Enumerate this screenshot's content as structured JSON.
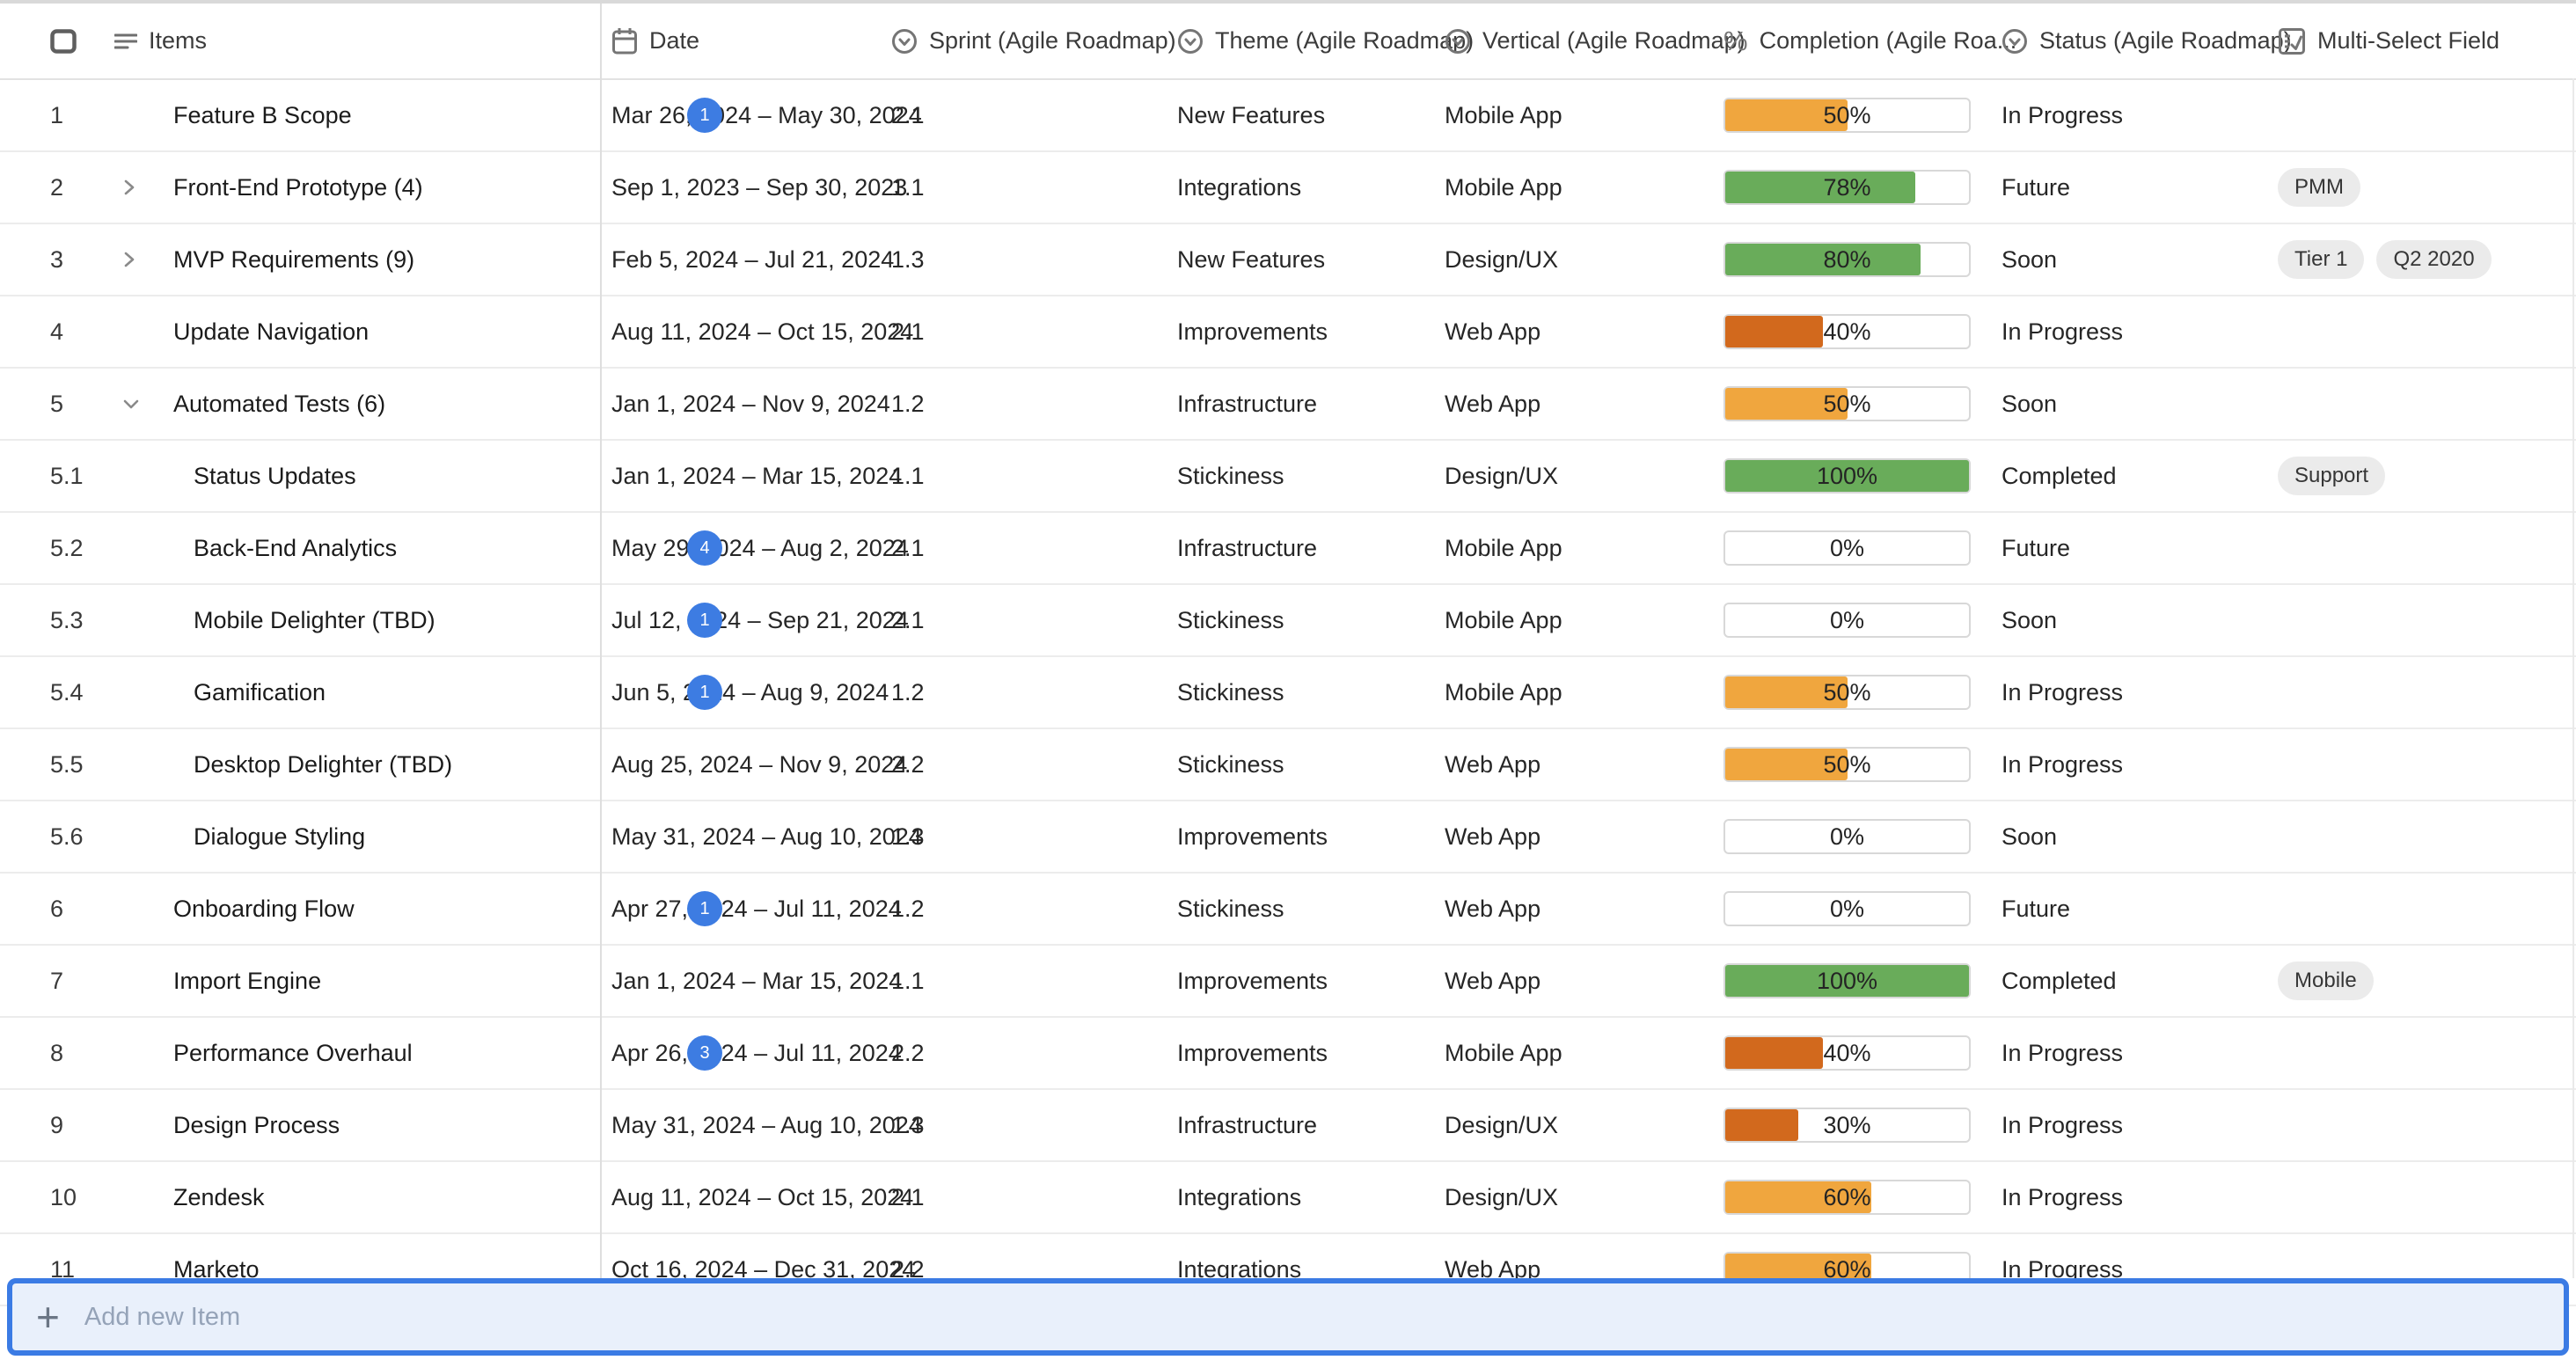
{
  "columns": [
    {
      "id": "items",
      "label": "Items",
      "icon": "menu-icon"
    },
    {
      "id": "date",
      "label": "Date",
      "icon": "calendar-icon"
    },
    {
      "id": "sprint",
      "label": "Sprint (Agile Roadmap)",
      "icon": "single-select-icon"
    },
    {
      "id": "theme",
      "label": "Theme (Agile Roadmap)",
      "icon": "single-select-icon"
    },
    {
      "id": "vertical",
      "label": "Vertical (Agile Roadmap)",
      "icon": "single-select-icon"
    },
    {
      "id": "completion",
      "label": "Completion (Agile Roa...",
      "icon": "percent-icon"
    },
    {
      "id": "status",
      "label": "Status (Agile Roadmap)",
      "icon": "single-select-icon"
    },
    {
      "id": "multi",
      "label": "Multi-Select Field",
      "icon": "multi-select-icon"
    }
  ],
  "rows": [
    {
      "num": "1",
      "name": "Feature B Scope",
      "badge": "1",
      "expand": null,
      "indent": false,
      "date": "Mar 26, 2024 – May 30, 2024",
      "sprint": "2.1",
      "theme": "New Features",
      "vertical": "Mobile App",
      "completion_pct": 50,
      "completion_label": "50%",
      "completion_color": "orange",
      "status": "In Progress",
      "tags": []
    },
    {
      "num": "2",
      "name": "Front-End Prototype (4)",
      "badge": null,
      "expand": "collapsed",
      "indent": false,
      "date": "Sep 1, 2023 – Sep 30, 2023",
      "sprint": "1.1",
      "theme": "Integrations",
      "vertical": "Mobile App",
      "completion_pct": 78,
      "completion_label": "78%",
      "completion_color": "green",
      "status": "Future",
      "tags": [
        "PMM"
      ]
    },
    {
      "num": "3",
      "name": "MVP Requirements (9)",
      "badge": null,
      "expand": "collapsed",
      "indent": false,
      "date": "Feb 5, 2024 – Jul 21, 2024",
      "sprint": "1.3",
      "theme": "New Features",
      "vertical": "Design/UX",
      "completion_pct": 80,
      "completion_label": "80%",
      "completion_color": "green",
      "status": "Soon",
      "tags": [
        "Tier 1",
        "Q2 2020"
      ]
    },
    {
      "num": "4",
      "name": "Update Navigation",
      "badge": null,
      "expand": null,
      "indent": false,
      "date": "Aug 11, 2024 – Oct 15, 2024",
      "sprint": "2.1",
      "theme": "Improvements",
      "vertical": "Web App",
      "completion_pct": 40,
      "completion_label": "40%",
      "completion_color": "dark_orange",
      "status": "In Progress",
      "tags": []
    },
    {
      "num": "5",
      "name": "Automated Tests (6)",
      "badge": null,
      "expand": "expanded",
      "indent": false,
      "date": "Jan 1, 2024 – Nov 9, 2024",
      "sprint": "1.2",
      "theme": "Infrastructure",
      "vertical": "Web App",
      "completion_pct": 50,
      "completion_label": "50%",
      "completion_color": "orange",
      "status": "Soon",
      "tags": []
    },
    {
      "num": "5.1",
      "name": "Status Updates",
      "badge": null,
      "expand": null,
      "indent": true,
      "date": "Jan 1, 2024 – Mar 15, 2024",
      "sprint": "1.1",
      "theme": "Stickiness",
      "vertical": "Design/UX",
      "completion_pct": 100,
      "completion_label": "100%",
      "completion_color": "green",
      "status": "Completed",
      "tags": [
        "Support"
      ]
    },
    {
      "num": "5.2",
      "name": "Back-End Analytics",
      "badge": "4",
      "expand": null,
      "indent": true,
      "date": "May 29, 2024 – Aug 2, 2024",
      "sprint": "2.1",
      "theme": "Infrastructure",
      "vertical": "Mobile App",
      "completion_pct": 0,
      "completion_label": "0%",
      "completion_color": null,
      "status": "Future",
      "tags": []
    },
    {
      "num": "5.3",
      "name": "Mobile Delighter (TBD)",
      "badge": "1",
      "expand": null,
      "indent": true,
      "date": "Jul 12, 2024 – Sep 21, 2024",
      "sprint": "2.1",
      "theme": "Stickiness",
      "vertical": "Mobile App",
      "completion_pct": 0,
      "completion_label": "0%",
      "completion_color": null,
      "status": "Soon",
      "tags": []
    },
    {
      "num": "5.4",
      "name": "Gamification",
      "badge": "1",
      "expand": null,
      "indent": true,
      "date": "Jun 5, 2024 – Aug 9, 2024",
      "sprint": "1.2",
      "theme": "Stickiness",
      "vertical": "Mobile App",
      "completion_pct": 50,
      "completion_label": "50%",
      "completion_color": "orange",
      "status": "In Progress",
      "tags": []
    },
    {
      "num": "5.5",
      "name": "Desktop Delighter (TBD)",
      "badge": null,
      "expand": null,
      "indent": true,
      "date": "Aug 25, 2024 – Nov 9, 2024",
      "sprint": "2.2",
      "theme": "Stickiness",
      "vertical": "Web App",
      "completion_pct": 50,
      "completion_label": "50%",
      "completion_color": "orange",
      "status": "In Progress",
      "tags": []
    },
    {
      "num": "5.6",
      "name": "Dialogue Styling",
      "badge": null,
      "expand": null,
      "indent": true,
      "date": "May 31, 2024 – Aug 10, 2024",
      "sprint": "1.3",
      "theme": "Improvements",
      "vertical": "Web App",
      "completion_pct": 0,
      "completion_label": "0%",
      "completion_color": null,
      "status": "Soon",
      "tags": []
    },
    {
      "num": "6",
      "name": "Onboarding Flow",
      "badge": "1",
      "expand": null,
      "indent": false,
      "date": "Apr 27, 2024 – Jul 11, 2024",
      "sprint": "1.2",
      "theme": "Stickiness",
      "vertical": "Web App",
      "completion_pct": 0,
      "completion_label": "0%",
      "completion_color": null,
      "status": "Future",
      "tags": []
    },
    {
      "num": "7",
      "name": "Import Engine",
      "badge": null,
      "expand": null,
      "indent": false,
      "date": "Jan 1, 2024 – Mar 15, 2024",
      "sprint": "1.1",
      "theme": "Improvements",
      "vertical": "Web App",
      "completion_pct": 100,
      "completion_label": "100%",
      "completion_color": "green",
      "status": "Completed",
      "tags": [
        "Mobile"
      ]
    },
    {
      "num": "8",
      "name": "Performance Overhaul",
      "badge": "3",
      "expand": null,
      "indent": false,
      "date": "Apr 26, 2024 – Jul 11, 2024",
      "sprint": "2.2",
      "theme": "Improvements",
      "vertical": "Mobile App",
      "completion_pct": 40,
      "completion_label": "40%",
      "completion_color": "dark_orange",
      "status": "In Progress",
      "tags": []
    },
    {
      "num": "9",
      "name": "Design Process",
      "badge": null,
      "expand": null,
      "indent": false,
      "date": "May 31, 2024 – Aug 10, 2024",
      "sprint": "1.3",
      "theme": "Infrastructure",
      "vertical": "Design/UX",
      "completion_pct": 30,
      "completion_label": "30%",
      "completion_color": "dark_orange",
      "status": "In Progress",
      "tags": []
    },
    {
      "num": "10",
      "name": "Zendesk",
      "badge": null,
      "expand": null,
      "indent": false,
      "date": "Aug 11, 2024 – Oct 15, 2024",
      "sprint": "2.1",
      "theme": "Integrations",
      "vertical": "Design/UX",
      "completion_pct": 60,
      "completion_label": "60%",
      "completion_color": "orange",
      "status": "In Progress",
      "tags": []
    },
    {
      "num": "11",
      "name": "Marketo",
      "badge": null,
      "expand": null,
      "indent": false,
      "date": "Oct 16, 2024 – Dec 31, 2024",
      "sprint": "2.2",
      "theme": "Integrations",
      "vertical": "Web App",
      "completion_pct": 60,
      "completion_label": "60%",
      "completion_color": "orange",
      "status": "In Progress",
      "tags": []
    }
  ],
  "add_bar": {
    "label": "Add new Item",
    "icon": "plus-icon"
  },
  "colors": {
    "badge": "#3D7CE2",
    "tag_bg": "#EBEBEB",
    "bar_border": "#D8D8D8",
    "add_border": "#3B7BE4",
    "add_bg": "#E9F0FB",
    "completion": {
      "orange": "#F0A63E",
      "green": "#69AC5A",
      "dark_orange": "#D2691D"
    }
  }
}
